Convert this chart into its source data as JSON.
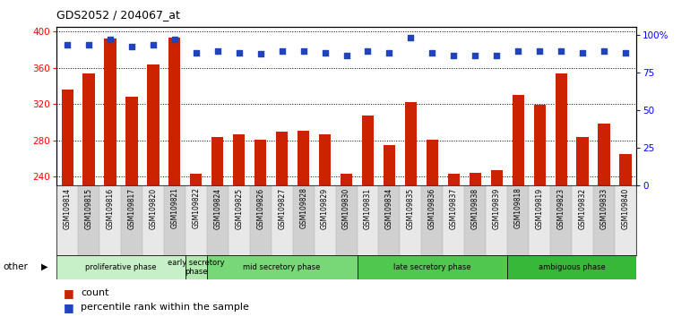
{
  "title": "GDS2052 / 204067_at",
  "samples": [
    "GSM109814",
    "GSM109815",
    "GSM109816",
    "GSM109817",
    "GSM109820",
    "GSM109821",
    "GSM109822",
    "GSM109824",
    "GSM109825",
    "GSM109826",
    "GSM109827",
    "GSM109828",
    "GSM109829",
    "GSM109830",
    "GSM109831",
    "GSM109834",
    "GSM109835",
    "GSM109836",
    "GSM109837",
    "GSM109838",
    "GSM109839",
    "GSM109818",
    "GSM109819",
    "GSM109823",
    "GSM109832",
    "GSM109833",
    "GSM109840"
  ],
  "counts": [
    336,
    354,
    392,
    328,
    364,
    393,
    243,
    283,
    286,
    281,
    289,
    290,
    286,
    243,
    307,
    275,
    322,
    281,
    243,
    244,
    247,
    330,
    319,
    354,
    283,
    298,
    265
  ],
  "percentiles": [
    93,
    93,
    97,
    92,
    93,
    97,
    88,
    89,
    88,
    87,
    89,
    89,
    88,
    86,
    89,
    88,
    98,
    88,
    86,
    86,
    86,
    89,
    89,
    89,
    88,
    89,
    88
  ],
  "phases": [
    {
      "label": "proliferative phase",
      "start": 0,
      "end": 5,
      "color": "#c8f0c8"
    },
    {
      "label": "early secretory\nphase",
      "start": 6,
      "end": 6,
      "color": "#b0e8b0"
    },
    {
      "label": "mid secretory phase",
      "start": 7,
      "end": 13,
      "color": "#78d878"
    },
    {
      "label": "late secretory phase",
      "start": 14,
      "end": 20,
      "color": "#50c850"
    },
    {
      "label": "ambiguous phase",
      "start": 21,
      "end": 26,
      "color": "#38b838"
    }
  ],
  "bar_color": "#cc2200",
  "dot_color": "#2244bb",
  "ylim_left": [
    230,
    405
  ],
  "ylim_right": [
    0,
    105
  ],
  "yticks_left": [
    240,
    280,
    320,
    360,
    400
  ],
  "yticks_right": [
    0,
    25,
    50,
    75,
    100
  ],
  "ytick_labels_right": [
    "0",
    "25",
    "50",
    "75",
    "100%"
  ],
  "legend_items": [
    {
      "label": "count",
      "color": "#cc2200"
    },
    {
      "label": "percentile rank within the sample",
      "color": "#2244bb"
    }
  ]
}
